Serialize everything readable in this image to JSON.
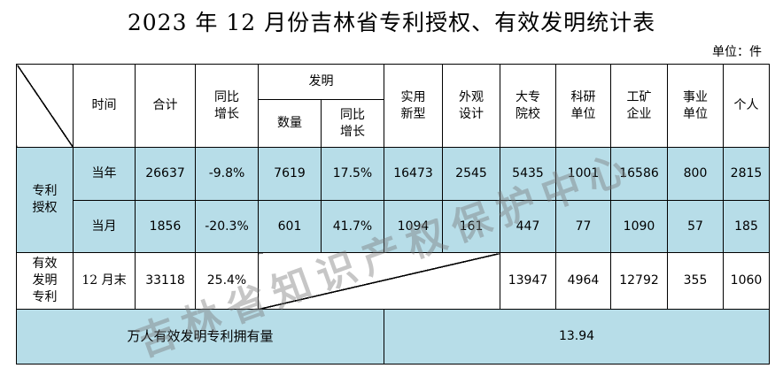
{
  "title": "2023 年 12 月份吉林省专利授权、有效发明统计表",
  "unit": "单位：件",
  "headers": {
    "time": "时间",
    "total": "合计",
    "yoy": [
      "同比",
      "增长"
    ],
    "invention": "发明",
    "inv_count": "数量",
    "inv_yoy": [
      "同比",
      "增长"
    ],
    "utility": [
      "实用",
      "新型"
    ],
    "design": [
      "外观",
      "设计"
    ],
    "college": [
      "大专",
      "院校"
    ],
    "research": [
      "科研",
      "单位"
    ],
    "enterprise": [
      "工矿",
      "企业"
    ],
    "institution": [
      "事业",
      "单位"
    ],
    "individual": "个人"
  },
  "grant": {
    "label": [
      "专利",
      "授权"
    ],
    "rows": [
      {
        "time": "当年",
        "total": "26637",
        "yoy": "-9.8%",
        "inv_count": "7619",
        "inv_yoy": "17.5%",
        "utility": "16473",
        "design": "2545",
        "college": "5435",
        "research": "1001",
        "enterprise": "16586",
        "institution": "800",
        "individual": "2815"
      },
      {
        "time": "当月",
        "total": "1856",
        "yoy": "-20.3%",
        "inv_count": "601",
        "inv_yoy": "41.7%",
        "utility": "1094",
        "design": "161",
        "college": "447",
        "research": "77",
        "enterprise": "1090",
        "institution": "57",
        "individual": "185"
      }
    ]
  },
  "valid": {
    "label": [
      "有效",
      "发明",
      "专利"
    ],
    "time": "12 月末",
    "total": "33118",
    "yoy": "25.4%",
    "college": "13947",
    "research": "4964",
    "enterprise": "12792",
    "institution": "355",
    "individual": "1060"
  },
  "ownership": {
    "label": "万人有效发明专利拥有量",
    "value": "13.94"
  },
  "watermark": "吉林省知识产权保护中心"
}
